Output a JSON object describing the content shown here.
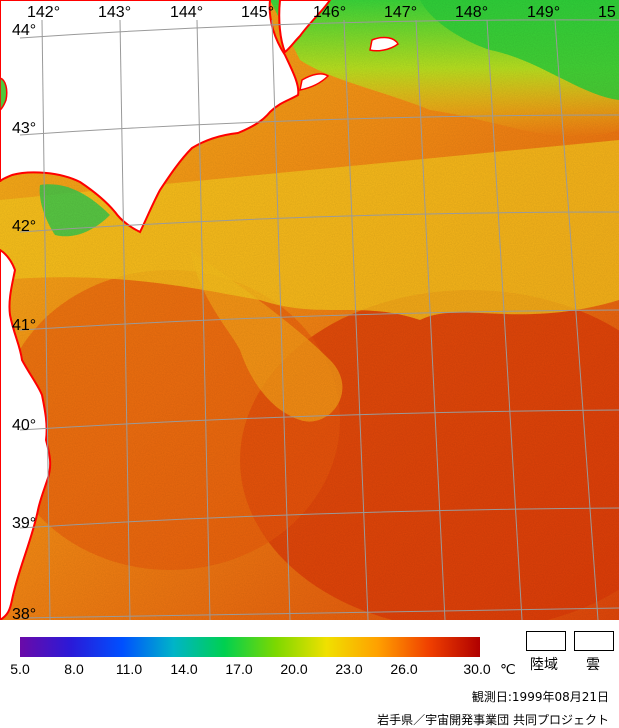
{
  "map": {
    "lon_labels": [
      "142°",
      "143°",
      "144°",
      "145°",
      "146°",
      "147°",
      "148°",
      "149°",
      "15"
    ],
    "lat_labels": [
      "44°",
      "43°",
      "42°",
      "41°",
      "40°",
      "39°",
      "38°"
    ],
    "colors": {
      "land": "#ffffff",
      "coast": "#ff0000",
      "grid": "#a0a0a0",
      "sea_base": "#f36a0c"
    }
  },
  "legend": {
    "tick_labels": [
      "5.0",
      "8.0",
      "11.0",
      "14.0",
      "17.0",
      "20.0",
      "23.0",
      "26.0",
      "30.0"
    ],
    "unit": "℃",
    "stops": [
      "#6a0aa8",
      "#2a1ad8",
      "#0050ff",
      "#00b4c8",
      "#00d050",
      "#7cd800",
      "#f0e000",
      "#ffa000",
      "#f04000",
      "#b00000"
    ],
    "land_label": "陸域",
    "cloud_label": "雲"
  },
  "footer": {
    "observation_date": "観測日:1999年08月21日",
    "credit": "岩手県／宇宙開発事業団 共同プロジェクト"
  }
}
